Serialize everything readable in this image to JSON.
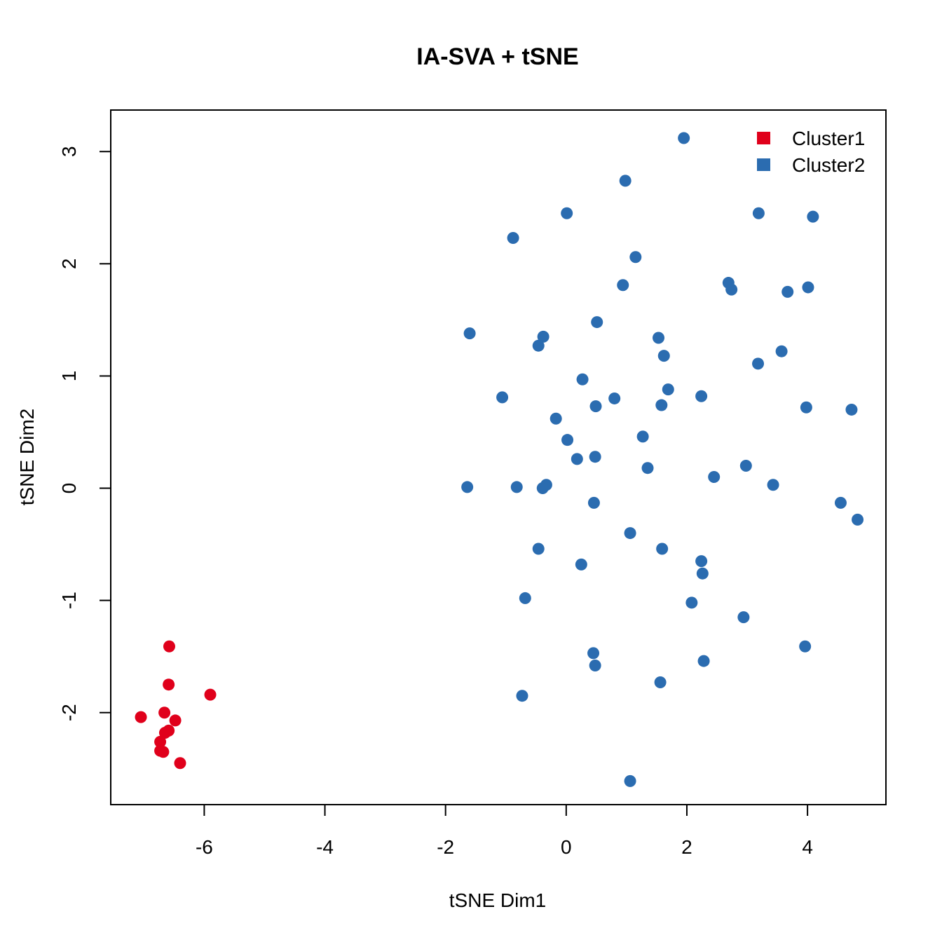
{
  "chart_data": {
    "type": "scatter",
    "title": "IA-SVA + tSNE",
    "xlabel": "tSNE Dim1",
    "ylabel": "tSNE Dim2",
    "xlim": [
      -7.55,
      5.3
    ],
    "ylim": [
      -2.82,
      3.37
    ],
    "xticks": [
      -6,
      -4,
      -2,
      0,
      2,
      4
    ],
    "yticks": [
      -2,
      -1,
      0,
      1,
      2,
      3
    ],
    "xtick_labels": [
      "-6",
      "-4",
      "-2",
      "0",
      "2",
      "4"
    ],
    "ytick_labels": [
      "-2",
      "-1",
      "0",
      "1",
      "2",
      "3"
    ],
    "grid": false,
    "legend_position": "top-right",
    "series": [
      {
        "name": "Cluster1",
        "color": "#e0001b",
        "points": [
          [
            -6.58,
            -1.41
          ],
          [
            -6.59,
            -1.75
          ],
          [
            -5.9,
            -1.84
          ],
          [
            -7.05,
            -2.04
          ],
          [
            -6.66,
            -2.0
          ],
          [
            -6.48,
            -2.07
          ],
          [
            -6.59,
            -2.16
          ],
          [
            -6.65,
            -2.18
          ],
          [
            -6.73,
            -2.26
          ],
          [
            -6.73,
            -2.34
          ],
          [
            -6.68,
            -2.35
          ],
          [
            -6.4,
            -2.45
          ]
        ]
      },
      {
        "name": "Cluster2",
        "color": "#2b6cb0",
        "points": [
          [
            1.95,
            3.12
          ],
          [
            0.98,
            2.74
          ],
          [
            0.01,
            2.45
          ],
          [
            3.19,
            2.45
          ],
          [
            4.09,
            2.42
          ],
          [
            -0.88,
            2.23
          ],
          [
            1.15,
            2.06
          ],
          [
            0.94,
            1.81
          ],
          [
            2.69,
            1.83
          ],
          [
            2.74,
            1.77
          ],
          [
            3.67,
            1.75
          ],
          [
            4.01,
            1.79
          ],
          [
            -1.6,
            1.38
          ],
          [
            0.51,
            1.48
          ],
          [
            -0.38,
            1.35
          ],
          [
            -0.46,
            1.27
          ],
          [
            1.53,
            1.34
          ],
          [
            1.62,
            1.18
          ],
          [
            3.57,
            1.22
          ],
          [
            3.18,
            1.11
          ],
          [
            0.27,
            0.97
          ],
          [
            -1.06,
            0.81
          ],
          [
            1.69,
            0.88
          ],
          [
            0.8,
            0.8
          ],
          [
            0.49,
            0.73
          ],
          [
            1.58,
            0.74
          ],
          [
            2.24,
            0.82
          ],
          [
            3.98,
            0.72
          ],
          [
            4.73,
            0.7
          ],
          [
            -0.17,
            0.62
          ],
          [
            0.02,
            0.43
          ],
          [
            1.27,
            0.46
          ],
          [
            0.18,
            0.26
          ],
          [
            0.48,
            0.28
          ],
          [
            1.35,
            0.18
          ],
          [
            2.98,
            0.2
          ],
          [
            2.45,
            0.1
          ],
          [
            3.43,
            0.03
          ],
          [
            -1.64,
            0.01
          ],
          [
            -0.82,
            0.01
          ],
          [
            -0.39,
            0.0
          ],
          [
            -0.33,
            0.03
          ],
          [
            0.46,
            -0.13
          ],
          [
            4.55,
            -0.13
          ],
          [
            4.83,
            -0.28
          ],
          [
            1.06,
            -0.4
          ],
          [
            -0.46,
            -0.54
          ],
          [
            1.59,
            -0.54
          ],
          [
            0.25,
            -0.68
          ],
          [
            2.24,
            -0.65
          ],
          [
            2.26,
            -0.76
          ],
          [
            -0.68,
            -0.98
          ],
          [
            2.08,
            -1.02
          ],
          [
            2.94,
            -1.15
          ],
          [
            3.96,
            -1.41
          ],
          [
            0.45,
            -1.47
          ],
          [
            0.48,
            -1.58
          ],
          [
            2.28,
            -1.54
          ],
          [
            1.56,
            -1.73
          ],
          [
            -0.73,
            -1.85
          ],
          [
            1.06,
            -2.61
          ]
        ]
      }
    ]
  }
}
